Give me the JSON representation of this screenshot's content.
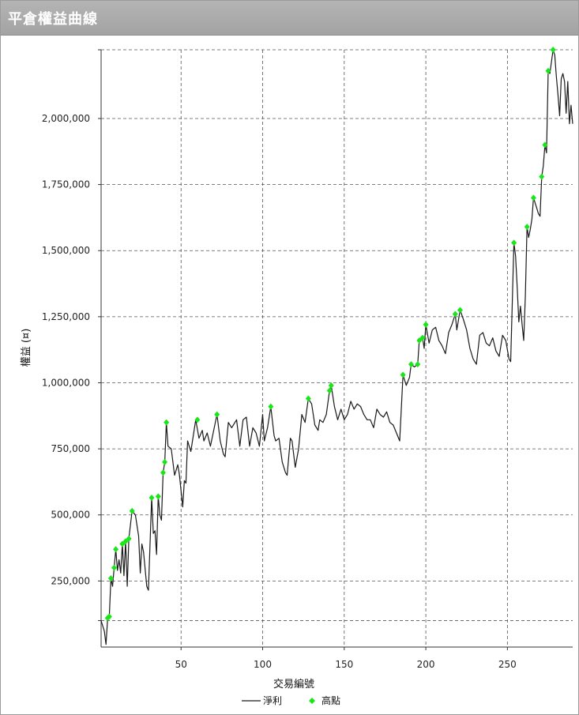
{
  "window": {
    "title": "平倉權益曲線"
  },
  "chart_data": {
    "type": "line",
    "title": "平倉權益曲線",
    "xlabel": "交易編號",
    "ylabel": "權益 (¤)",
    "xlim": [
      1,
      290
    ],
    "ylim": [
      0,
      2260000
    ],
    "x_ticks": [
      50,
      100,
      150,
      200,
      250
    ],
    "y_ticks": [
      250000,
      500000,
      750000,
      1000000,
      1250000,
      1500000,
      1750000,
      2000000
    ],
    "y_tick_labels": [
      "250,000",
      "500,000",
      "750,000",
      "1,000,000",
      "1,250,000",
      "1,500,000",
      "1,750,000",
      "2,000,000"
    ],
    "extra_gridline_y": 100000,
    "grid": true,
    "legend": {
      "placement": "bottom-center",
      "entries": [
        "淨利",
        "高點"
      ]
    },
    "series": [
      {
        "name": "淨利",
        "color": "#1a1a1a",
        "points": [
          [
            1,
            100000
          ],
          [
            3,
            60000
          ],
          [
            4,
            10000
          ],
          [
            5,
            110000
          ],
          [
            6,
            110000
          ],
          [
            7,
            260000
          ],
          [
            8,
            230000
          ],
          [
            9,
            300000
          ],
          [
            10,
            370000
          ],
          [
            11,
            290000
          ],
          [
            12,
            330000
          ],
          [
            13,
            280000
          ],
          [
            14,
            390000
          ],
          [
            15,
            270000
          ],
          [
            16,
            400000
          ],
          [
            17,
            230000
          ],
          [
            18,
            410000
          ],
          [
            20,
            515000
          ],
          [
            22,
            500000
          ],
          [
            24,
            420000
          ],
          [
            25,
            280000
          ],
          [
            26,
            390000
          ],
          [
            27,
            360000
          ],
          [
            29,
            230000
          ],
          [
            30,
            215000
          ],
          [
            32,
            565000
          ],
          [
            33,
            430000
          ],
          [
            34,
            440000
          ],
          [
            35,
            350000
          ],
          [
            36,
            570000
          ],
          [
            37,
            500000
          ],
          [
            38,
            480000
          ],
          [
            39,
            660000
          ],
          [
            40,
            700000
          ],
          [
            41,
            850000
          ],
          [
            42,
            760000
          ],
          [
            44,
            750000
          ],
          [
            46,
            650000
          ],
          [
            48,
            690000
          ],
          [
            49,
            650000
          ],
          [
            51,
            530000
          ],
          [
            52,
            630000
          ],
          [
            53,
            620000
          ],
          [
            54,
            780000
          ],
          [
            56,
            740000
          ],
          [
            59,
            860000
          ],
          [
            61,
            790000
          ],
          [
            63,
            820000
          ],
          [
            64,
            780000
          ],
          [
            66,
            810000
          ],
          [
            68,
            760000
          ],
          [
            72,
            880000
          ],
          [
            74,
            780000
          ],
          [
            76,
            730000
          ],
          [
            77,
            720000
          ],
          [
            79,
            850000
          ],
          [
            81,
            830000
          ],
          [
            84,
            860000
          ],
          [
            86,
            760000
          ],
          [
            88,
            860000
          ],
          [
            90,
            870000
          ],
          [
            92,
            760000
          ],
          [
            94,
            830000
          ],
          [
            96,
            810000
          ],
          [
            98,
            760000
          ],
          [
            100,
            880000
          ],
          [
            101,
            780000
          ],
          [
            103,
            830000
          ],
          [
            105,
            910000
          ],
          [
            107,
            800000
          ],
          [
            108,
            780000
          ],
          [
            110,
            790000
          ],
          [
            112,
            700000
          ],
          [
            114,
            660000
          ],
          [
            115,
            650000
          ],
          [
            117,
            790000
          ],
          [
            118,
            780000
          ],
          [
            120,
            680000
          ],
          [
            122,
            750000
          ],
          [
            124,
            880000
          ],
          [
            126,
            850000
          ],
          [
            128,
            940000
          ],
          [
            130,
            920000
          ],
          [
            132,
            840000
          ],
          [
            134,
            820000
          ],
          [
            135,
            860000
          ],
          [
            137,
            850000
          ],
          [
            139,
            880000
          ],
          [
            141,
            970000
          ],
          [
            142,
            990000
          ],
          [
            144,
            910000
          ],
          [
            146,
            860000
          ],
          [
            148,
            900000
          ],
          [
            150,
            860000
          ],
          [
            152,
            880000
          ],
          [
            154,
            930000
          ],
          [
            156,
            900000
          ],
          [
            158,
            920000
          ],
          [
            160,
            910000
          ],
          [
            162,
            880000
          ],
          [
            164,
            860000
          ],
          [
            166,
            860000
          ],
          [
            168,
            830000
          ],
          [
            170,
            900000
          ],
          [
            172,
            880000
          ],
          [
            174,
            870000
          ],
          [
            176,
            890000
          ],
          [
            178,
            850000
          ],
          [
            180,
            840000
          ],
          [
            182,
            810000
          ],
          [
            184,
            780000
          ],
          [
            186,
            1030000
          ],
          [
            188,
            990000
          ],
          [
            190,
            1020000
          ],
          [
            191,
            1070000
          ],
          [
            193,
            1060000
          ],
          [
            195,
            1070000
          ],
          [
            196,
            1160000
          ],
          [
            198,
            1170000
          ],
          [
            199,
            1130000
          ],
          [
            200,
            1220000
          ],
          [
            202,
            1150000
          ],
          [
            204,
            1200000
          ],
          [
            206,
            1210000
          ],
          [
            208,
            1160000
          ],
          [
            210,
            1140000
          ],
          [
            212,
            1110000
          ],
          [
            214,
            1190000
          ],
          [
            216,
            1220000
          ],
          [
            218,
            1260000
          ],
          [
            219,
            1200000
          ],
          [
            221,
            1275000
          ],
          [
            223,
            1240000
          ],
          [
            225,
            1200000
          ],
          [
            227,
            1130000
          ],
          [
            229,
            1090000
          ],
          [
            231,
            1070000
          ],
          [
            233,
            1180000
          ],
          [
            235,
            1190000
          ],
          [
            237,
            1150000
          ],
          [
            239,
            1140000
          ],
          [
            241,
            1170000
          ],
          [
            243,
            1120000
          ],
          [
            245,
            1100000
          ],
          [
            247,
            1180000
          ],
          [
            249,
            1160000
          ],
          [
            251,
            1090000
          ],
          [
            252,
            1080000
          ],
          [
            254,
            1530000
          ],
          [
            255,
            1480000
          ],
          [
            256,
            1360000
          ],
          [
            257,
            1230000
          ],
          [
            258,
            1290000
          ],
          [
            259,
            1220000
          ],
          [
            260,
            1160000
          ],
          [
            261,
            1330000
          ],
          [
            262,
            1590000
          ],
          [
            263,
            1550000
          ],
          [
            264,
            1580000
          ],
          [
            265,
            1620000
          ],
          [
            266,
            1700000
          ],
          [
            268,
            1660000
          ],
          [
            269,
            1640000
          ],
          [
            270,
            1630000
          ],
          [
            271,
            1780000
          ],
          [
            272,
            1820000
          ],
          [
            273,
            1900000
          ],
          [
            274,
            1870000
          ],
          [
            275,
            2180000
          ],
          [
            276,
            2170000
          ],
          [
            278,
            2260000
          ],
          [
            279,
            2240000
          ],
          [
            280,
            2160000
          ],
          [
            281,
            2090000
          ],
          [
            282,
            2010000
          ],
          [
            283,
            2150000
          ],
          [
            284,
            2170000
          ],
          [
            285,
            2140000
          ],
          [
            286,
            2020000
          ],
          [
            287,
            2140000
          ],
          [
            288,
            1980000
          ],
          [
            289,
            2050000
          ],
          [
            290,
            1980000
          ]
        ]
      },
      {
        "name": "高點",
        "color": "#19e619",
        "marker": "diamond",
        "points": [
          [
            5,
            110000
          ],
          [
            6,
            115000
          ],
          [
            7,
            260000
          ],
          [
            9,
            300000
          ],
          [
            10,
            370000
          ],
          [
            14,
            390000
          ],
          [
            16,
            400000
          ],
          [
            18,
            410000
          ],
          [
            20,
            515000
          ],
          [
            32,
            565000
          ],
          [
            36,
            570000
          ],
          [
            39,
            660000
          ],
          [
            40,
            700000
          ],
          [
            41,
            850000
          ],
          [
            60,
            860000
          ],
          [
            72,
            880000
          ],
          [
            105,
            910000
          ],
          [
            128,
            940000
          ],
          [
            141,
            970000
          ],
          [
            142,
            990000
          ],
          [
            186,
            1030000
          ],
          [
            191,
            1070000
          ],
          [
            195,
            1070000
          ],
          [
            196,
            1160000
          ],
          [
            198,
            1170000
          ],
          [
            200,
            1220000
          ],
          [
            218,
            1260000
          ],
          [
            221,
            1275000
          ],
          [
            254,
            1530000
          ],
          [
            262,
            1590000
          ],
          [
            266,
            1700000
          ],
          [
            271,
            1780000
          ],
          [
            273,
            1900000
          ],
          [
            275,
            2180000
          ],
          [
            278,
            2260000
          ]
        ]
      }
    ]
  }
}
